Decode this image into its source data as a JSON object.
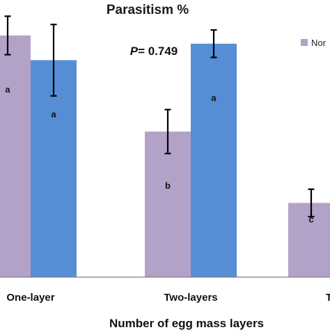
{
  "chart_data": {
    "type": "bar",
    "title": "Parasitism %",
    "xlabel": "Number of egg mass layers",
    "ylabel": "",
    "annotation_prefix": "P",
    "annotation_value": "= 0.749",
    "categories": [
      "One-layer",
      "Two-layers",
      "Thr"
    ],
    "series": [
      {
        "name": "Nor",
        "color": "#b3a2c8",
        "values": [
          88,
          53,
          27
        ],
        "errors": [
          7,
          8,
          5
        ],
        "letters": [
          "a",
          "b",
          "c"
        ]
      },
      {
        "color": "#558ed5",
        "values": [
          79,
          85,
          null
        ],
        "errors": [
          13,
          5,
          null
        ],
        "letters": [
          "a",
          "a",
          null
        ]
      }
    ],
    "ylim": [
      0,
      100
    ],
    "grid": false,
    "legend_position": "top-right"
  }
}
